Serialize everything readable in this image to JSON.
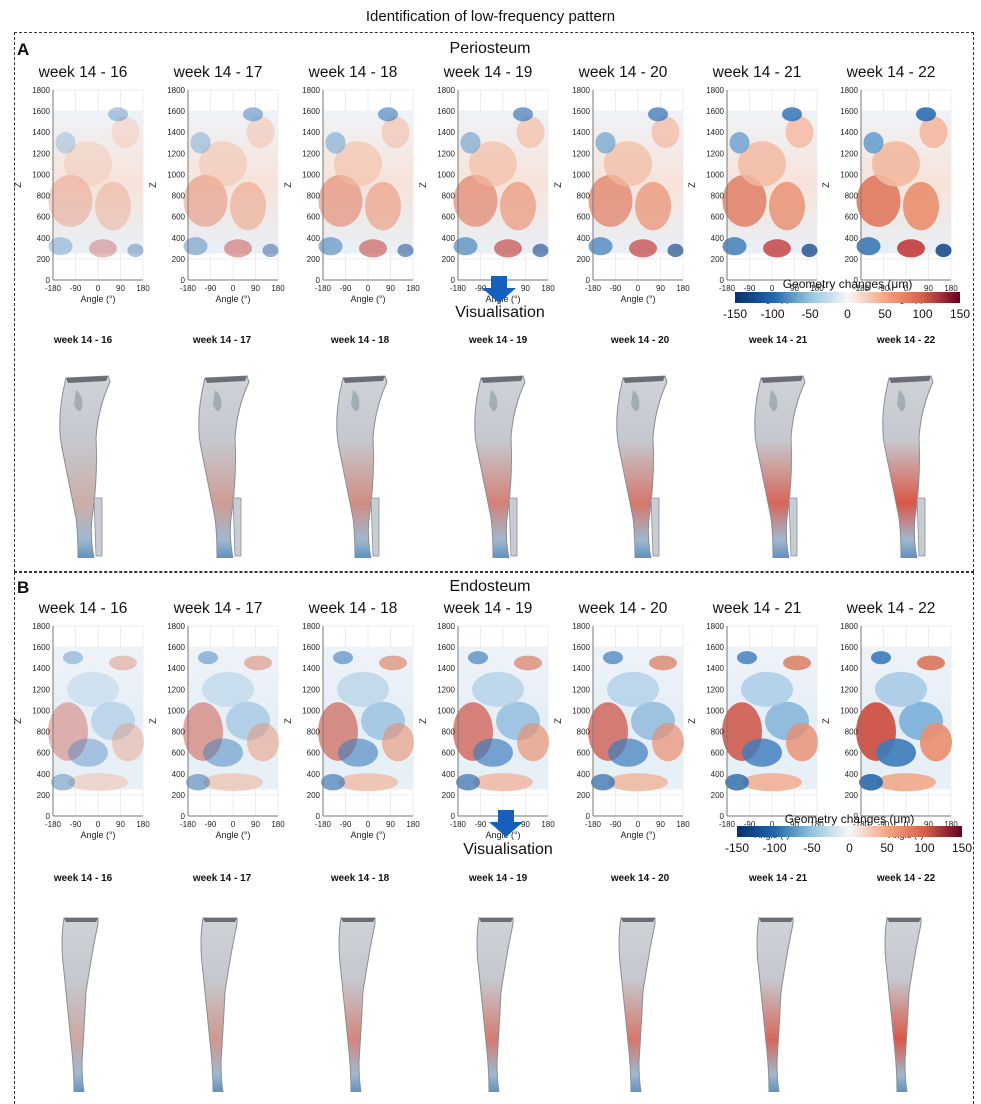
{
  "figure": {
    "title": "Identification of low-frequency pattern",
    "visualisation_label": "Visualisation",
    "colorbar": {
      "title": "Geometry changes (μm)",
      "ticks": [
        "-150",
        "-100",
        "-50",
        "0",
        "50",
        "100",
        "150"
      ],
      "colors": [
        "#08306b",
        "#2166ac",
        "#92c5de",
        "#f7f7f7",
        "#f4a582",
        "#d6604d",
        "#67001f"
      ]
    }
  },
  "panels": [
    {
      "letter": "A",
      "title": "Periosteum",
      "heatmap_titles": [
        "week 14 - 16",
        "week 14 - 17",
        "week 14 - 18",
        "week 14 - 19",
        "week 14 - 20",
        "week 14 - 21",
        "week 14 - 22"
      ],
      "bone_labels": [
        "week 14 - 16",
        "week 14 - 17",
        "week 14 - 18",
        "week 14 - 19",
        "week 14 - 20",
        "week 14 - 21",
        "week 14 - 22"
      ],
      "intensity": [
        0.15,
        0.3,
        0.45,
        0.55,
        0.65,
        0.8,
        0.95
      ]
    },
    {
      "letter": "B",
      "title": "Endosteum",
      "heatmap_titles": [
        "week 14 - 16",
        "week 14 - 17",
        "week 14 - 18",
        "week 14 - 19",
        "week 14 - 20",
        "week 14 - 21",
        "week 14 - 22"
      ],
      "bone_labels": [
        "week 14 - 16",
        "week 14 - 17",
        "week 14 - 18",
        "week 14 - 19",
        "week 14 - 20",
        "week 14 - 21",
        "week 14 - 22"
      ],
      "intensity": [
        0.2,
        0.35,
        0.5,
        0.6,
        0.65,
        0.8,
        0.95
      ]
    }
  ],
  "chart_data": {
    "type": "heatmap",
    "xlabel": "Angle (°)",
    "ylabel": "Z",
    "x_ticks": [
      "-180",
      "-90",
      "0",
      "90",
      "180"
    ],
    "y_ticks": [
      "0",
      "200",
      "400",
      "600",
      "800",
      "1000",
      "1200",
      "1400",
      "1600",
      "1800"
    ],
    "xlim": [
      -180,
      180
    ],
    "ylim": [
      0,
      1800
    ],
    "data_z_range": [
      250,
      1600
    ],
    "color_range": [
      -150,
      150
    ],
    "units": "μm"
  }
}
